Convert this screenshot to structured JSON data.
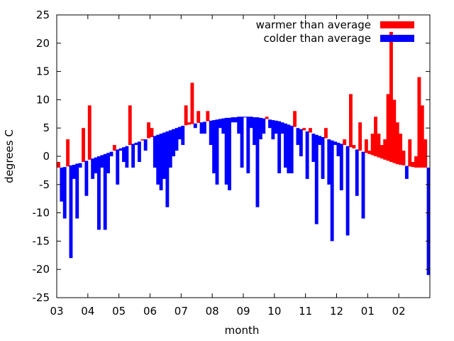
{
  "chart_data": {
    "type": "area",
    "title": "",
    "xlabel": "month",
    "ylabel": "degrees C",
    "ylim": [
      -25,
      25
    ],
    "yticks": [
      -25,
      -20,
      -15,
      -10,
      -5,
      0,
      5,
      10,
      15,
      20,
      25
    ],
    "xlim": [
      0,
      12
    ],
    "xticks": [
      {
        "value": 0,
        "label": "03"
      },
      {
        "value": 1,
        "label": "04"
      },
      {
        "value": 2,
        "label": "05"
      },
      {
        "value": 3,
        "label": "06"
      },
      {
        "value": 4,
        "label": "07"
      },
      {
        "value": 5,
        "label": "08"
      },
      {
        "value": 6,
        "label": "09"
      },
      {
        "value": 7,
        "label": "10"
      },
      {
        "value": 8,
        "label": "11"
      },
      {
        "value": 9,
        "label": "12"
      },
      {
        "value": 10,
        "label": "01"
      },
      {
        "value": 11,
        "label": "02"
      }
    ],
    "grid": false,
    "legend_position": "top-right",
    "colors": {
      "warmer": "#ff0000",
      "colder": "#0000ff",
      "axis": "#000000"
    },
    "series": [
      {
        "name": "warmer than average",
        "color": "#ff0000"
      },
      {
        "name": "colder than average",
        "color": "#0000ff"
      }
    ],
    "x": [
      0.0,
      0.1,
      0.2,
      0.3,
      0.4,
      0.5,
      0.6,
      0.7,
      0.8,
      0.9,
      1.0,
      1.1,
      1.2,
      1.3,
      1.4,
      1.5,
      1.6,
      1.7,
      1.8,
      1.9,
      2.0,
      2.1,
      2.2,
      2.3,
      2.4,
      2.5,
      2.6,
      2.7,
      2.8,
      2.9,
      3.0,
      3.1,
      3.2,
      3.3,
      3.4,
      3.5,
      3.6,
      3.7,
      3.8,
      3.9,
      4.0,
      4.1,
      4.2,
      4.3,
      4.4,
      4.5,
      4.6,
      4.7,
      4.8,
      4.9,
      5.0,
      5.1,
      5.2,
      5.3,
      5.4,
      5.5,
      5.6,
      5.7,
      5.8,
      5.9,
      6.0,
      6.1,
      6.2,
      6.3,
      6.4,
      6.5,
      6.6,
      6.7,
      6.8,
      6.9,
      7.0,
      7.1,
      7.2,
      7.3,
      7.4,
      7.5,
      7.6,
      7.7,
      7.8,
      7.9,
      8.0,
      8.1,
      8.2,
      8.3,
      8.4,
      8.5,
      8.6,
      8.7,
      8.8,
      8.9,
      9.0,
      9.1,
      9.2,
      9.3,
      9.4,
      9.5,
      9.6,
      9.7,
      9.8,
      9.9,
      10.0,
      10.1,
      10.2,
      10.3,
      10.4,
      10.5,
      10.6,
      10.7,
      10.8,
      10.9,
      11.0,
      11.1,
      11.2,
      11.3,
      11.4,
      11.5,
      11.6,
      11.7,
      11.8,
      11.9
    ],
    "average": [
      -2.0,
      -2.0,
      -1.9,
      -1.8,
      -1.6,
      -1.5,
      -1.3,
      -1.2,
      -1.0,
      -0.8,
      -0.6,
      -0.4,
      -0.2,
      0.0,
      0.2,
      0.4,
      0.6,
      0.8,
      1.0,
      1.2,
      1.4,
      1.6,
      1.8,
      2.0,
      2.2,
      2.4,
      2.6,
      2.8,
      3.0,
      3.2,
      3.4,
      3.6,
      3.8,
      4.0,
      4.2,
      4.4,
      4.6,
      4.8,
      5.0,
      5.2,
      5.4,
      5.5,
      5.6,
      5.7,
      5.8,
      5.9,
      6.0,
      6.1,
      6.2,
      6.3,
      6.4,
      6.5,
      6.6,
      6.7,
      6.8,
      6.8,
      6.9,
      6.9,
      7.0,
      7.0,
      7.0,
      7.0,
      7.0,
      6.9,
      6.9,
      6.8,
      6.7,
      6.6,
      6.5,
      6.4,
      6.3,
      6.2,
      6.0,
      5.8,
      5.6,
      5.4,
      5.2,
      5.0,
      4.8,
      4.6,
      4.4,
      4.2,
      4.0,
      3.8,
      3.6,
      3.4,
      3.2,
      3.0,
      2.8,
      2.6,
      2.4,
      2.2,
      2.0,
      1.8,
      1.6,
      1.4,
      1.2,
      1.0,
      0.8,
      0.6,
      0.4,
      0.2,
      0.0,
      -0.2,
      -0.4,
      -0.6,
      -0.8,
      -1.0,
      -1.2,
      -1.4,
      -1.5,
      -1.6,
      -1.7,
      -1.8,
      -1.9,
      -2.0,
      -2.0,
      -2.0,
      -2.0,
      -2.0
    ],
    "temperature": [
      -1,
      -8,
      -11,
      3,
      -18,
      -4,
      -11,
      -2,
      5,
      -7,
      9,
      -4,
      -3,
      -13,
      -2,
      -13,
      -3,
      0,
      2,
      -5,
      1,
      -1,
      -2,
      9,
      -2,
      2,
      -1,
      3,
      1,
      6,
      5,
      -2,
      -5,
      -6,
      -4,
      -9,
      -2,
      0,
      1,
      3,
      2,
      9,
      6,
      13,
      5,
      8,
      4,
      4,
      8,
      2,
      -3,
      -5,
      5,
      4,
      -5,
      -6,
      6,
      6,
      4,
      -2,
      7,
      -3,
      5,
      2,
      -9,
      3,
      4,
      7,
      5,
      3,
      4,
      -3,
      4,
      -2,
      -3,
      -3,
      8,
      2,
      0,
      5,
      -4,
      5,
      -1,
      -12,
      2,
      -4,
      5,
      -5,
      -15,
      2,
      0,
      -6,
      3,
      -14,
      11,
      2,
      -7,
      6,
      -11,
      3,
      1,
      4,
      7,
      4,
      2,
      3,
      11,
      22,
      10,
      6,
      4,
      1,
      -4,
      3,
      -1,
      0,
      14,
      9,
      3,
      -21
    ]
  }
}
